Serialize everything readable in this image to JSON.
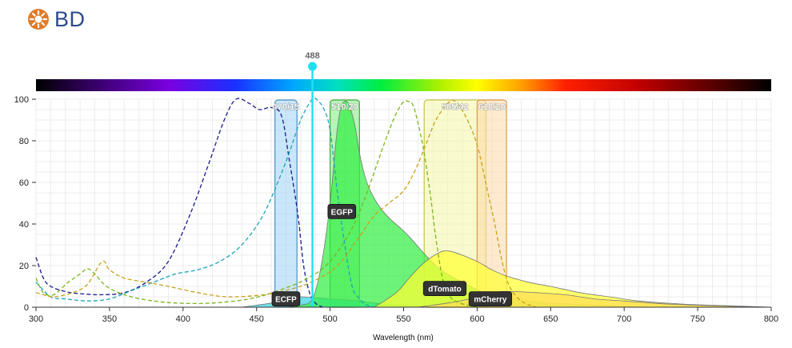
{
  "brand": {
    "name": "BD",
    "logo_color": "#e07b2a",
    "text_color": "#2d4a8a"
  },
  "chart_data": {
    "type": "area",
    "xlabel": "Wavelength (nm)",
    "ylabel": "",
    "xlim": [
      300,
      800
    ],
    "ylim": [
      0,
      100
    ],
    "x_ticks": [
      300,
      350,
      400,
      450,
      500,
      550,
      600,
      650,
      700,
      750,
      800
    ],
    "y_ticks": [
      0,
      20,
      40,
      60,
      80,
      100
    ],
    "grid": true,
    "laser": {
      "label": "488",
      "wavelength": 488,
      "color": "#1ee0f0"
    },
    "filters": [
      {
        "label": "470/15",
        "center": 470,
        "width": 15,
        "fill": "#9fd4f5",
        "stroke": "#4a90c8"
      },
      {
        "label": "510/20",
        "center": 510,
        "width": 20,
        "fill": "#7dea7d",
        "stroke": "#3ab03a"
      },
      {
        "label": "585/42",
        "center": 585,
        "width": 42,
        "fill": "#f4f7a8",
        "stroke": "#c9c24a"
      },
      {
        "label": "610/20",
        "center": 610,
        "width": 20,
        "fill": "#fdd8a8",
        "stroke": "#e09a4a"
      }
    ],
    "series": [
      {
        "name": "ECFP",
        "kind": "emission",
        "color": "#22c8d8",
        "fill": "#35d5e5",
        "points": [
          [
            440,
            0
          ],
          [
            460,
            2
          ],
          [
            470,
            4
          ],
          [
            480,
            5
          ],
          [
            490,
            4.5
          ],
          [
            500,
            4
          ],
          [
            510,
            3.5
          ],
          [
            520,
            3
          ],
          [
            530,
            2
          ],
          [
            545,
            1
          ],
          [
            560,
            0.5
          ],
          [
            600,
            0
          ]
        ]
      },
      {
        "name": "EGFP",
        "kind": "emission",
        "color": "#2ed52e",
        "fill": "#33ee44",
        "points": [
          [
            470,
            0
          ],
          [
            480,
            1
          ],
          [
            488,
            4
          ],
          [
            494,
            20
          ],
          [
            500,
            50
          ],
          [
            504,
            80
          ],
          [
            507,
            95
          ],
          [
            510,
            99
          ],
          [
            513,
            97
          ],
          [
            517,
            87
          ],
          [
            520,
            74
          ],
          [
            525,
            60
          ],
          [
            532,
            50
          ],
          [
            540,
            43
          ],
          [
            548,
            38
          ],
          [
            555,
            33
          ],
          [
            565,
            25
          ],
          [
            575,
            18
          ],
          [
            590,
            12
          ],
          [
            605,
            7
          ],
          [
            625,
            4
          ],
          [
            650,
            2
          ],
          [
            700,
            0.5
          ],
          [
            720,
            0
          ]
        ]
      },
      {
        "name": "dTomato",
        "kind": "emission",
        "color": "#eaea1a",
        "fill": "#ffff33",
        "points": [
          [
            530,
            0
          ],
          [
            545,
            7
          ],
          [
            555,
            15
          ],
          [
            565,
            22
          ],
          [
            575,
            26.5
          ],
          [
            581,
            27
          ],
          [
            590,
            25
          ],
          [
            600,
            22
          ],
          [
            610,
            18
          ],
          [
            620,
            15
          ],
          [
            635,
            12
          ],
          [
            650,
            10
          ],
          [
            670,
            7
          ],
          [
            690,
            5
          ],
          [
            710,
            3
          ],
          [
            740,
            1.5
          ],
          [
            780,
            0.5
          ],
          [
            800,
            0
          ]
        ]
      },
      {
        "name": "mCherry",
        "kind": "emission",
        "color": "#f0c860",
        "fill": "#ffdd55",
        "points": [
          [
            560,
            0
          ],
          [
            580,
            2
          ],
          [
            595,
            4
          ],
          [
            605,
            6
          ],
          [
            615,
            7.5
          ],
          [
            625,
            7.5
          ],
          [
            640,
            7
          ],
          [
            660,
            6
          ],
          [
            680,
            4
          ],
          [
            700,
            3
          ],
          [
            730,
            1.5
          ],
          [
            770,
            0.5
          ],
          [
            800,
            0
          ]
        ]
      },
      {
        "name": "ECFP",
        "kind": "excitation",
        "color": "#1a1a8a",
        "points": [
          [
            300,
            24
          ],
          [
            305,
            14
          ],
          [
            310,
            10
          ],
          [
            320,
            7.5
          ],
          [
            330,
            6.5
          ],
          [
            345,
            6
          ],
          [
            360,
            7
          ],
          [
            375,
            12
          ],
          [
            390,
            22
          ],
          [
            405,
            45
          ],
          [
            418,
            70
          ],
          [
            428,
            90
          ],
          [
            436,
            100
          ],
          [
            445,
            98
          ],
          [
            452,
            95
          ],
          [
            460,
            96
          ],
          [
            467,
            92
          ],
          [
            472,
            72
          ],
          [
            478,
            45
          ],
          [
            482,
            20
          ],
          [
            486,
            7
          ],
          [
            490,
            2
          ],
          [
            495,
            0
          ]
        ]
      },
      {
        "name": "EGFP",
        "kind": "excitation",
        "color": "#1aa6b8",
        "points": [
          [
            300,
            12
          ],
          [
            310,
            5
          ],
          [
            320,
            4
          ],
          [
            335,
            3
          ],
          [
            350,
            4
          ],
          [
            365,
            8
          ],
          [
            380,
            12
          ],
          [
            395,
            16
          ],
          [
            410,
            18
          ],
          [
            425,
            22
          ],
          [
            440,
            30
          ],
          [
            455,
            45
          ],
          [
            470,
            70
          ],
          [
            480,
            90
          ],
          [
            488,
            100
          ],
          [
            492,
            99
          ],
          [
            496,
            95
          ],
          [
            500,
            85
          ],
          [
            505,
            55
          ],
          [
            510,
            30
          ],
          [
            515,
            10
          ],
          [
            520,
            4
          ],
          [
            525,
            1
          ],
          [
            530,
            0
          ]
        ]
      },
      {
        "name": "dTomato",
        "kind": "excitation",
        "color": "#7ab81a",
        "points": [
          [
            300,
            14
          ],
          [
            305,
            7
          ],
          [
            312,
            6
          ],
          [
            322,
            12
          ],
          [
            330,
            16
          ],
          [
            335,
            18.5
          ],
          [
            340,
            16
          ],
          [
            348,
            10
          ],
          [
            360,
            6
          ],
          [
            375,
            3.5
          ],
          [
            395,
            2
          ],
          [
            420,
            2
          ],
          [
            445,
            4
          ],
          [
            465,
            8
          ],
          [
            485,
            14
          ],
          [
            500,
            22
          ],
          [
            515,
            38
          ],
          [
            525,
            55
          ],
          [
            535,
            75
          ],
          [
            543,
            90
          ],
          [
            549,
            98
          ],
          [
            553,
            99
          ],
          [
            557,
            96
          ],
          [
            563,
            78
          ],
          [
            568,
            55
          ],
          [
            573,
            28
          ],
          [
            578,
            10
          ],
          [
            585,
            3
          ],
          [
            600,
            0
          ]
        ]
      },
      {
        "name": "mCherry",
        "kind": "excitation",
        "color": "#c8a21a",
        "points": [
          [
            300,
            7
          ],
          [
            305,
            6
          ],
          [
            312,
            5
          ],
          [
            325,
            7
          ],
          [
            335,
            11
          ],
          [
            345,
            22
          ],
          [
            350,
            18
          ],
          [
            360,
            14
          ],
          [
            375,
            12
          ],
          [
            390,
            10
          ],
          [
            410,
            7
          ],
          [
            430,
            5
          ],
          [
            455,
            6
          ],
          [
            475,
            9
          ],
          [
            490,
            13
          ],
          [
            505,
            20
          ],
          [
            520,
            34
          ],
          [
            530,
            44
          ],
          [
            540,
            50
          ],
          [
            550,
            56
          ],
          [
            558,
            66
          ],
          [
            565,
            78
          ],
          [
            572,
            90
          ],
          [
            580,
            98
          ],
          [
            585,
            99
          ],
          [
            592,
            92
          ],
          [
            600,
            78
          ],
          [
            607,
            56
          ],
          [
            612,
            40
          ],
          [
            617,
            22
          ],
          [
            622,
            10
          ],
          [
            630,
            3
          ],
          [
            640,
            0
          ]
        ]
      }
    ]
  }
}
